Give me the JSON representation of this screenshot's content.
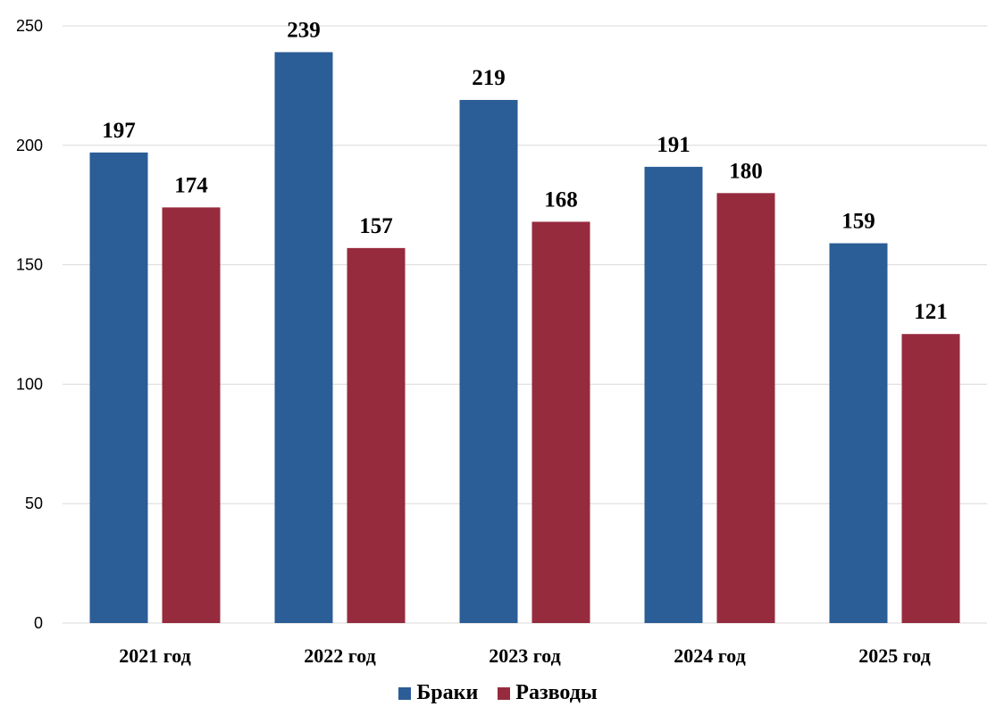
{
  "chart_data": {
    "type": "bar",
    "title": "",
    "xlabel": "",
    "ylabel": "",
    "categories": [
      "2021 год",
      "2022 год",
      "2023 год",
      "2024 год",
      "2025 год"
    ],
    "series": [
      {
        "name": "Браки",
        "color": "#2b5d96",
        "values": [
          197,
          239,
          219,
          191,
          159
        ]
      },
      {
        "name": "Разводы",
        "color": "#962b3e",
        "values": [
          174,
          157,
          168,
          180,
          121
        ]
      }
    ],
    "ylim": [
      0,
      250
    ],
    "yticks": [
      0,
      50,
      100,
      150,
      200,
      250
    ],
    "grid": true,
    "legend_position": "bottom",
    "data_labels": true
  }
}
